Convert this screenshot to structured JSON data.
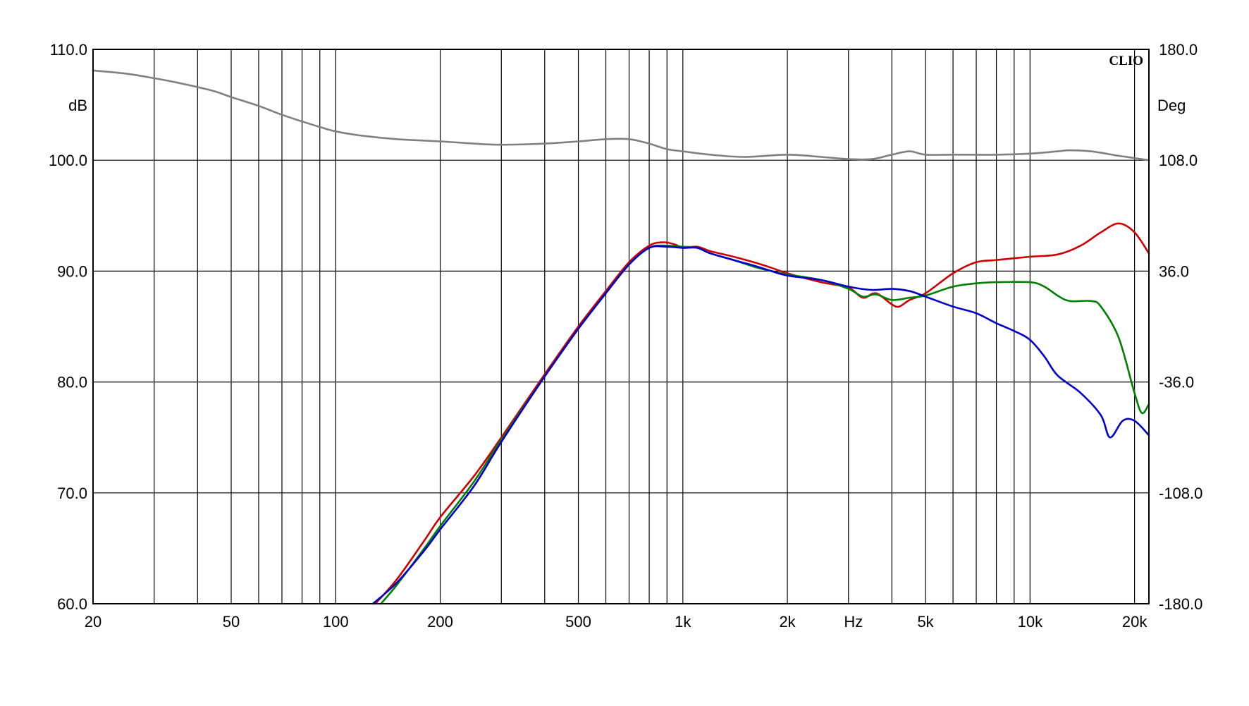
{
  "chart_data": {
    "type": "line",
    "brand": "CLIO",
    "x_scale": "log",
    "xlim": [
      20,
      22000
    ],
    "ylim_left": [
      60,
      110
    ],
    "ylim_right": [
      -180,
      180
    ],
    "grid": true,
    "left_unit": "dB",
    "right_unit": "Deg",
    "x_unit": "Hz",
    "x_tick_labels": [
      {
        "v": 20,
        "label": "20"
      },
      {
        "v": 50,
        "label": "50"
      },
      {
        "v": 100,
        "label": "100"
      },
      {
        "v": 200,
        "label": "200"
      },
      {
        "v": 500,
        "label": "500"
      },
      {
        "v": 1000,
        "label": "1k"
      },
      {
        "v": 2000,
        "label": "2k"
      },
      {
        "v": 5000,
        "label": "5k"
      },
      {
        "v": 10000,
        "label": "10k"
      },
      {
        "v": 20000,
        "label": "20k"
      }
    ],
    "y_left_ticks": [
      "60.0",
      "70.0",
      "80.0",
      "90.0",
      "100.0",
      "110.0"
    ],
    "y_right_ticks": [
      "-180.0",
      "-108.0",
      "-36.0",
      "36.0",
      "108.0",
      "180.0"
    ],
    "series": [
      {
        "color": "#808080",
        "axis": "left",
        "points": [
          [
            20,
            108.1
          ],
          [
            25,
            107.8
          ],
          [
            30,
            107.4
          ],
          [
            35,
            107.0
          ],
          [
            40,
            106.6
          ],
          [
            45,
            106.2
          ],
          [
            50,
            105.7
          ],
          [
            60,
            104.9
          ],
          [
            70,
            104.1
          ],
          [
            80,
            103.5
          ],
          [
            90,
            103.0
          ],
          [
            100,
            102.6
          ],
          [
            120,
            102.2
          ],
          [
            150,
            101.9
          ],
          [
            200,
            101.7
          ],
          [
            250,
            101.5
          ],
          [
            300,
            101.4
          ],
          [
            400,
            101.5
          ],
          [
            500,
            101.7
          ],
          [
            600,
            101.9
          ],
          [
            700,
            101.9
          ],
          [
            800,
            101.5
          ],
          [
            900,
            101.0
          ],
          [
            1000,
            100.8
          ],
          [
            1200,
            100.5
          ],
          [
            1500,
            100.3
          ],
          [
            2000,
            100.5
          ],
          [
            2500,
            100.3
          ],
          [
            3000,
            100.1
          ],
          [
            3500,
            100.1
          ],
          [
            4000,
            100.5
          ],
          [
            4500,
            100.8
          ],
          [
            5000,
            100.5
          ],
          [
            6000,
            100.5
          ],
          [
            8000,
            100.5
          ],
          [
            10000,
            100.6
          ],
          [
            12000,
            100.8
          ],
          [
            13000,
            100.9
          ],
          [
            15000,
            100.8
          ],
          [
            18000,
            100.4
          ],
          [
            20000,
            100.2
          ],
          [
            22000,
            100.0
          ]
        ]
      },
      {
        "color": "#d00000",
        "axis": "left",
        "points": [
          [
            130,
            60.0
          ],
          [
            150,
            62.2
          ],
          [
            180,
            65.7
          ],
          [
            200,
            67.8
          ],
          [
            250,
            71.5
          ],
          [
            300,
            75.0
          ],
          [
            400,
            80.7
          ],
          [
            500,
            85.0
          ],
          [
            600,
            88.2
          ],
          [
            700,
            90.8
          ],
          [
            800,
            92.3
          ],
          [
            880,
            92.6
          ],
          [
            950,
            92.4
          ],
          [
            1000,
            92.1
          ],
          [
            1100,
            92.2
          ],
          [
            1200,
            91.8
          ],
          [
            1400,
            91.3
          ],
          [
            1600,
            90.8
          ],
          [
            1800,
            90.3
          ],
          [
            2000,
            89.8
          ],
          [
            2500,
            89.0
          ],
          [
            3000,
            88.5
          ],
          [
            3300,
            87.6
          ],
          [
            3600,
            88.0
          ],
          [
            4000,
            87.0
          ],
          [
            4200,
            86.8
          ],
          [
            4500,
            87.4
          ],
          [
            5000,
            88.0
          ],
          [
            6000,
            89.8
          ],
          [
            7000,
            90.8
          ],
          [
            8000,
            91.0
          ],
          [
            10000,
            91.3
          ],
          [
            12000,
            91.5
          ],
          [
            14000,
            92.3
          ],
          [
            16000,
            93.5
          ],
          [
            18000,
            94.3
          ],
          [
            20000,
            93.5
          ],
          [
            22000,
            91.6
          ]
        ]
      },
      {
        "color": "#008000",
        "axis": "left",
        "points": [
          [
            135,
            60.0
          ],
          [
            150,
            61.7
          ],
          [
            180,
            65.0
          ],
          [
            200,
            67.0
          ],
          [
            250,
            71.0
          ],
          [
            300,
            74.8
          ],
          [
            400,
            80.5
          ],
          [
            500,
            84.8
          ],
          [
            600,
            88.0
          ],
          [
            700,
            90.6
          ],
          [
            800,
            92.1
          ],
          [
            880,
            92.3
          ],
          [
            1000,
            92.2
          ],
          [
            1100,
            92.1
          ],
          [
            1200,
            91.6
          ],
          [
            1400,
            91.0
          ],
          [
            1600,
            90.4
          ],
          [
            1800,
            90.0
          ],
          [
            2000,
            89.7
          ],
          [
            2500,
            89.2
          ],
          [
            3000,
            88.4
          ],
          [
            3300,
            87.7
          ],
          [
            3600,
            87.9
          ],
          [
            4000,
            87.4
          ],
          [
            4500,
            87.6
          ],
          [
            5000,
            87.8
          ],
          [
            6000,
            88.6
          ],
          [
            7000,
            88.9
          ],
          [
            8000,
            89.0
          ],
          [
            10000,
            89.0
          ],
          [
            11000,
            88.6
          ],
          [
            12000,
            87.8
          ],
          [
            13000,
            87.3
          ],
          [
            15000,
            87.3
          ],
          [
            16000,
            86.8
          ],
          [
            18000,
            84.0
          ],
          [
            20000,
            79.0
          ],
          [
            21000,
            77.2
          ],
          [
            22000,
            78.0
          ]
        ]
      },
      {
        "color": "#0000c8",
        "axis": "left",
        "points": [
          [
            128,
            60.0
          ],
          [
            150,
            61.9
          ],
          [
            180,
            64.8
          ],
          [
            200,
            66.7
          ],
          [
            250,
            70.6
          ],
          [
            300,
            74.6
          ],
          [
            400,
            80.5
          ],
          [
            500,
            84.8
          ],
          [
            600,
            88.0
          ],
          [
            700,
            90.6
          ],
          [
            800,
            92.1
          ],
          [
            900,
            92.2
          ],
          [
            1000,
            92.1
          ],
          [
            1100,
            92.1
          ],
          [
            1200,
            91.6
          ],
          [
            1400,
            91.0
          ],
          [
            1600,
            90.5
          ],
          [
            1800,
            90.0
          ],
          [
            2000,
            89.6
          ],
          [
            2500,
            89.2
          ],
          [
            3000,
            88.6
          ],
          [
            3500,
            88.3
          ],
          [
            4000,
            88.4
          ],
          [
            4500,
            88.2
          ],
          [
            5000,
            87.7
          ],
          [
            6000,
            86.8
          ],
          [
            7000,
            86.2
          ],
          [
            8000,
            85.3
          ],
          [
            9000,
            84.6
          ],
          [
            10000,
            83.8
          ],
          [
            11000,
            82.3
          ],
          [
            12000,
            80.6
          ],
          [
            14000,
            79.0
          ],
          [
            16000,
            77.0
          ],
          [
            17000,
            75.0
          ],
          [
            18500,
            76.5
          ],
          [
            20000,
            76.5
          ],
          [
            22000,
            75.2
          ]
        ]
      }
    ]
  }
}
